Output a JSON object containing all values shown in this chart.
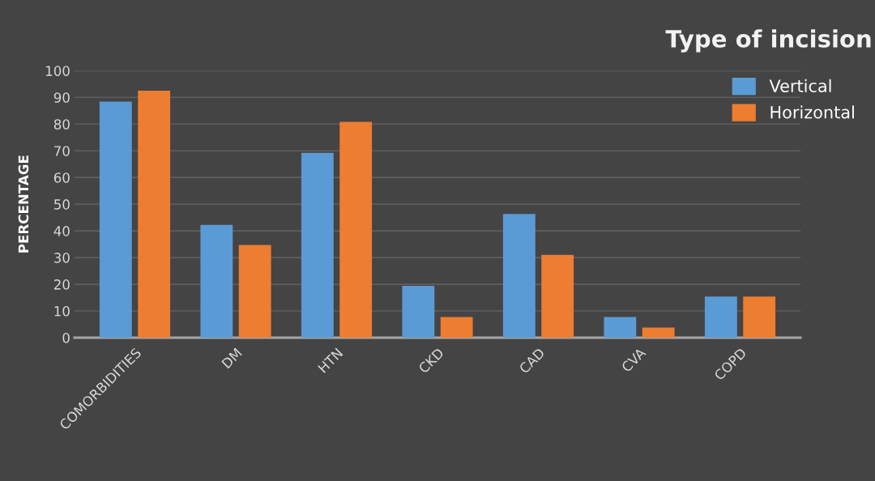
{
  "chart_data": {
    "type": "bar",
    "title": "Type of incision",
    "ylabel": "PERCENTAGE",
    "categories": [
      "COMORBIDITIES",
      "DM",
      "HTN",
      "CKD",
      "CAD",
      "CVA",
      "COPD"
    ],
    "series": [
      {
        "name": "Vertical",
        "color": "#5b9bd5",
        "values": [
          88.4,
          42.2,
          69.2,
          19.4,
          46.3,
          7.7,
          15.4
        ]
      },
      {
        "name": "Horizontal",
        "color": "#ed7d31",
        "values": [
          92.5,
          34.7,
          80.8,
          7.7,
          31.0,
          3.8,
          15.4
        ]
      }
    ],
    "ylim": [
      0,
      100
    ],
    "yticks": [
      0,
      10,
      20,
      30,
      40,
      50,
      60,
      70,
      80,
      90,
      100
    ],
    "grid": "y",
    "legend": "top right"
  }
}
